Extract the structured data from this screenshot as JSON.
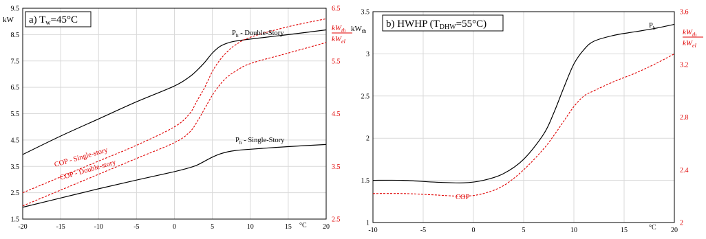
{
  "colors": {
    "black": "#000000",
    "red": "#e00000",
    "grid": "#d9d9d9"
  },
  "chart_data": [
    {
      "type": "line",
      "title": "a) T",
      "title_sub": "w",
      "title_rest": "=45°C",
      "ylabel": "kW",
      "y2label_num": "kW",
      "y2label_num_sub": "th",
      "y2label_den": "kW",
      "y2label_den_sub": "el",
      "xunit": "°C",
      "xlim": [
        -20,
        20
      ],
      "xticks": [
        "-20",
        "-15",
        "-10",
        "-5",
        "0",
        "5",
        "10",
        "15",
        "20"
      ],
      "ylim": [
        1.5,
        9.5
      ],
      "yticks": [
        "1.5",
        "2.5",
        "3.5",
        "4.5",
        "5.5",
        "6.5",
        "7.5",
        "8.5",
        "9.5"
      ],
      "y2lim": [
        2.5,
        6.5
      ],
      "y2ticks": [
        "2.5",
        "3.5",
        "4.5",
        "5.5",
        "6.5"
      ],
      "grid": true,
      "series": [
        {
          "name": "P",
          "name_sub": "h",
          "name_rest": " - Double-Story",
          "axis": "left",
          "style": "solid",
          "color": "#000000",
          "x": [
            -20,
            -15,
            -10,
            -5,
            0,
            2,
            3,
            4,
            5,
            6,
            7,
            8,
            10,
            15,
            20
          ],
          "y": [
            3.95,
            4.65,
            5.3,
            5.95,
            6.55,
            6.9,
            7.15,
            7.45,
            7.8,
            8.05,
            8.18,
            8.25,
            8.33,
            8.5,
            8.68
          ]
        },
        {
          "name": "P",
          "name_sub": "h",
          "name_rest": " - Single-Story",
          "axis": "left",
          "style": "solid",
          "color": "#000000",
          "x": [
            -20,
            -15,
            -10,
            -5,
            0,
            2,
            3,
            4,
            5,
            6,
            7,
            8,
            10,
            15,
            20
          ],
          "y": [
            1.95,
            2.3,
            2.65,
            2.98,
            3.3,
            3.45,
            3.55,
            3.7,
            3.85,
            3.97,
            4.05,
            4.1,
            4.15,
            4.25,
            4.33
          ]
        },
        {
          "name": "COP - Single-story",
          "axis": "right",
          "style": "dashed",
          "color": "#e00000",
          "x": [
            -20,
            -15,
            -10,
            -5,
            0,
            2,
            3,
            4,
            5,
            6,
            7,
            8,
            10,
            15,
            20
          ],
          "y": [
            3.0,
            3.3,
            3.6,
            3.9,
            4.25,
            4.5,
            4.75,
            5.0,
            5.3,
            5.52,
            5.68,
            5.8,
            5.95,
            6.15,
            6.3
          ]
        },
        {
          "name": "COP - Double-story",
          "axis": "right",
          "style": "dashed",
          "color": "#e00000",
          "x": [
            -20,
            -15,
            -10,
            -5,
            0,
            2,
            3,
            4,
            5,
            6,
            7,
            8,
            10,
            15,
            20
          ],
          "y": [
            2.75,
            3.05,
            3.35,
            3.65,
            3.95,
            4.15,
            4.35,
            4.6,
            4.85,
            5.05,
            5.2,
            5.3,
            5.45,
            5.65,
            5.85
          ]
        }
      ]
    },
    {
      "type": "line",
      "title": "b) HWHP (T",
      "title_sub": "DHW",
      "title_rest": "=55°C)",
      "ylabel": "kW",
      "ylabel_sub": "th",
      "y2label_num": "kW",
      "y2label_num_sub": "th",
      "y2label_den": "kW",
      "y2label_den_sub": "el",
      "xunit": "°C",
      "xlim": [
        -10,
        20
      ],
      "xticks": [
        "-10",
        "-5",
        "0",
        "5",
        "10",
        "15",
        "20"
      ],
      "ylim": [
        1,
        3.5
      ],
      "yticks": [
        "1",
        "1.5",
        "2",
        "2.5",
        "3",
        "3.5"
      ],
      "y2lim": [
        2,
        3.6
      ],
      "y2ticks": [
        "2",
        "2.4",
        "2.8",
        "3.2",
        "3.6"
      ],
      "grid": true,
      "series": [
        {
          "name": "P",
          "name_sub": "h",
          "axis": "left",
          "style": "solid",
          "color": "#000000",
          "x": [
            -10,
            -7,
            -4,
            -1,
            1,
            3,
            5,
            7,
            8,
            9,
            10,
            11,
            12,
            14,
            16,
            18,
            20
          ],
          "y": [
            1.5,
            1.5,
            1.48,
            1.47,
            1.5,
            1.58,
            1.75,
            2.05,
            2.3,
            2.6,
            2.88,
            3.05,
            3.15,
            3.22,
            3.26,
            3.3,
            3.35
          ]
        },
        {
          "name": "COP",
          "axis": "right",
          "style": "dashed",
          "color": "#e00000",
          "x": [
            -10,
            -7,
            -4,
            -1,
            1,
            3,
            5,
            7,
            8,
            9,
            10,
            11,
            12,
            14,
            16,
            18,
            20
          ],
          "y": [
            2.22,
            2.22,
            2.21,
            2.2,
            2.22,
            2.28,
            2.4,
            2.56,
            2.66,
            2.77,
            2.88,
            2.96,
            3.0,
            3.07,
            3.13,
            3.2,
            3.28
          ]
        }
      ]
    }
  ]
}
